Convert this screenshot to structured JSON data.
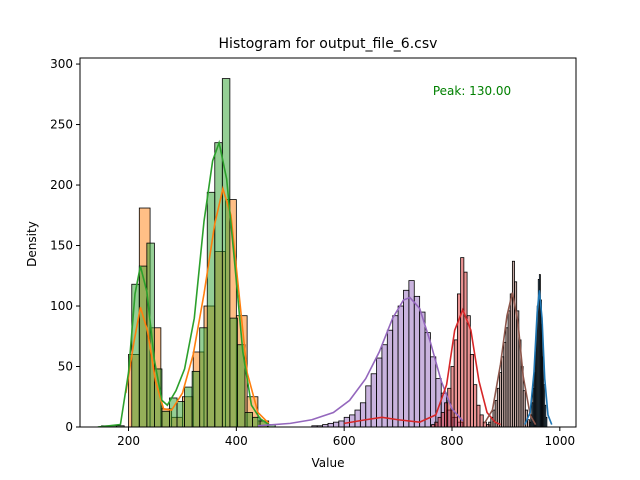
{
  "chart_data": {
    "type": "histogram",
    "title": "Histogram for output_file_6.csv",
    "xlabel": "Value",
    "ylabel": "Density",
    "xlim": [
      110,
      1030
    ],
    "ylim": [
      0,
      305
    ],
    "x_ticks": [
      200,
      400,
      600,
      800,
      1000
    ],
    "y_ticks": [
      0,
      50,
      100,
      150,
      200,
      250,
      300
    ],
    "grid": false,
    "annotation": {
      "text": "Peak: 130.00",
      "color": "#008000",
      "position": "top-right"
    },
    "series": [
      {
        "color": "#ff7f0e",
        "bin_width": 20,
        "bins": [
          {
            "x": 200,
            "count": 60
          },
          {
            "x": 220,
            "count": 181
          },
          {
            "x": 240,
            "count": 82
          },
          {
            "x": 260,
            "count": 15
          },
          {
            "x": 280,
            "count": 8
          },
          {
            "x": 300,
            "count": 25
          },
          {
            "x": 320,
            "count": 62
          },
          {
            "x": 340,
            "count": 100
          },
          {
            "x": 360,
            "count": 145
          },
          {
            "x": 380,
            "count": 188
          },
          {
            "x": 400,
            "count": 92
          },
          {
            "x": 420,
            "count": 25
          },
          {
            "x": 440,
            "count": 5
          }
        ],
        "kde": [
          [
            195,
            28
          ],
          [
            210,
            70
          ],
          [
            222,
            99
          ],
          [
            235,
            80
          ],
          [
            250,
            38
          ],
          [
            265,
            15
          ],
          [
            280,
            14
          ],
          [
            300,
            28
          ],
          [
            320,
            60
          ],
          [
            340,
            110
          ],
          [
            360,
            168
          ],
          [
            375,
            197
          ],
          [
            390,
            175
          ],
          [
            405,
            110
          ],
          [
            420,
            45
          ],
          [
            440,
            12
          ],
          [
            460,
            3
          ]
        ]
      },
      {
        "color": "#2ca02c",
        "bin_width": 14,
        "bins": [
          {
            "x": 150,
            "count": 1
          },
          {
            "x": 164,
            "count": 1
          },
          {
            "x": 178,
            "count": 1
          },
          {
            "x": 192,
            "count": 0
          },
          {
            "x": 206,
            "count": 118
          },
          {
            "x": 220,
            "count": 133
          },
          {
            "x": 234,
            "count": 152
          },
          {
            "x": 248,
            "count": 48
          },
          {
            "x": 262,
            "count": 13
          },
          {
            "x": 276,
            "count": 24
          },
          {
            "x": 290,
            "count": 21
          },
          {
            "x": 304,
            "count": 33
          },
          {
            "x": 318,
            "count": 46
          },
          {
            "x": 332,
            "count": 82
          },
          {
            "x": 346,
            "count": 194
          },
          {
            "x": 360,
            "count": 235
          },
          {
            "x": 374,
            "count": 288
          },
          {
            "x": 388,
            "count": 90
          },
          {
            "x": 402,
            "count": 68
          },
          {
            "x": 416,
            "count": 12
          },
          {
            "x": 430,
            "count": 8
          },
          {
            "x": 444,
            "count": 5
          },
          {
            "x": 458,
            "count": 2
          }
        ],
        "kde": [
          [
            143,
            0
          ],
          [
            185,
            2
          ],
          [
            200,
            45
          ],
          [
            212,
            110
          ],
          [
            222,
            133
          ],
          [
            234,
            112
          ],
          [
            248,
            55
          ],
          [
            262,
            22
          ],
          [
            272,
            18
          ],
          [
            288,
            30
          ],
          [
            304,
            48
          ],
          [
            322,
            90
          ],
          [
            340,
            170
          ],
          [
            356,
            220
          ],
          [
            368,
            235
          ],
          [
            382,
            205
          ],
          [
            396,
            140
          ],
          [
            412,
            62
          ],
          [
            428,
            18
          ],
          [
            444,
            7
          ],
          [
            460,
            2
          ]
        ]
      },
      {
        "color": "#9467bd",
        "bin_width": 10,
        "bins": [
          {
            "x": 540,
            "count": 1
          },
          {
            "x": 550,
            "count": 1
          },
          {
            "x": 560,
            "count": 2
          },
          {
            "x": 570,
            "count": 3
          },
          {
            "x": 580,
            "count": 4
          },
          {
            "x": 590,
            "count": 5
          },
          {
            "x": 600,
            "count": 8
          },
          {
            "x": 610,
            "count": 10
          },
          {
            "x": 620,
            "count": 14
          },
          {
            "x": 630,
            "count": 20
          },
          {
            "x": 640,
            "count": 34
          },
          {
            "x": 650,
            "count": 44
          },
          {
            "x": 660,
            "count": 57
          },
          {
            "x": 670,
            "count": 68
          },
          {
            "x": 680,
            "count": 80
          },
          {
            "x": 690,
            "count": 92
          },
          {
            "x": 700,
            "count": 100
          },
          {
            "x": 710,
            "count": 113
          },
          {
            "x": 720,
            "count": 121
          },
          {
            "x": 730,
            "count": 108
          },
          {
            "x": 740,
            "count": 95
          },
          {
            "x": 750,
            "count": 78
          },
          {
            "x": 760,
            "count": 58
          },
          {
            "x": 770,
            "count": 40
          },
          {
            "x": 780,
            "count": 28
          },
          {
            "x": 790,
            "count": 14
          },
          {
            "x": 800,
            "count": 8
          },
          {
            "x": 810,
            "count": 4
          }
        ],
        "kde": [
          [
            440,
            1
          ],
          [
            500,
            3
          ],
          [
            540,
            6
          ],
          [
            580,
            12
          ],
          [
            610,
            22
          ],
          [
            640,
            40
          ],
          [
            665,
            62
          ],
          [
            690,
            90
          ],
          [
            710,
            105
          ],
          [
            722,
            107
          ],
          [
            740,
            98
          ],
          [
            760,
            70
          ],
          [
            780,
            38
          ],
          [
            800,
            15
          ],
          [
            820,
            5
          ]
        ]
      },
      {
        "color": "#d62728",
        "bin_width": 6,
        "bins": [
          {
            "x": 762,
            "count": 2
          },
          {
            "x": 768,
            "count": 4
          },
          {
            "x": 774,
            "count": 8
          },
          {
            "x": 780,
            "count": 12
          },
          {
            "x": 786,
            "count": 20
          },
          {
            "x": 792,
            "count": 32
          },
          {
            "x": 798,
            "count": 50
          },
          {
            "x": 804,
            "count": 72
          },
          {
            "x": 810,
            "count": 110
          },
          {
            "x": 816,
            "count": 140
          },
          {
            "x": 822,
            "count": 128
          },
          {
            "x": 828,
            "count": 92
          },
          {
            "x": 834,
            "count": 60
          },
          {
            "x": 840,
            "count": 35
          },
          {
            "x": 846,
            "count": 18
          },
          {
            "x": 852,
            "count": 10
          },
          {
            "x": 858,
            "count": 4
          },
          {
            "x": 864,
            "count": 2
          }
        ],
        "kde": [
          [
            600,
            3
          ],
          [
            640,
            6
          ],
          [
            670,
            8
          ],
          [
            700,
            6
          ],
          [
            740,
            4
          ],
          [
            770,
            10
          ],
          [
            790,
            35
          ],
          [
            805,
            80
          ],
          [
            820,
            97
          ],
          [
            835,
            80
          ],
          [
            850,
            38
          ],
          [
            865,
            12
          ],
          [
            880,
            4
          ],
          [
            890,
            2
          ]
        ]
      },
      {
        "color": "#8c564b",
        "bin_width": 4,
        "bins": [
          {
            "x": 868,
            "count": 4
          },
          {
            "x": 872,
            "count": 8
          },
          {
            "x": 876,
            "count": 14
          },
          {
            "x": 880,
            "count": 22
          },
          {
            "x": 884,
            "count": 32
          },
          {
            "x": 888,
            "count": 45
          },
          {
            "x": 892,
            "count": 58
          },
          {
            "x": 896,
            "count": 70
          },
          {
            "x": 900,
            "count": 82
          },
          {
            "x": 904,
            "count": 96
          },
          {
            "x": 908,
            "count": 110
          },
          {
            "x": 912,
            "count": 137
          },
          {
            "x": 916,
            "count": 120
          },
          {
            "x": 920,
            "count": 96
          },
          {
            "x": 924,
            "count": 72
          },
          {
            "x": 928,
            "count": 50
          },
          {
            "x": 932,
            "count": 30
          },
          {
            "x": 936,
            "count": 14
          },
          {
            "x": 940,
            "count": 6
          }
        ],
        "kde": [
          [
            860,
            3
          ],
          [
            875,
            14
          ],
          [
            890,
            52
          ],
          [
            902,
            92
          ],
          [
            912,
            111
          ],
          [
            922,
            88
          ],
          [
            932,
            42
          ],
          [
            945,
            10
          ],
          [
            955,
            2
          ]
        ]
      },
      {
        "color": "#1f77b4",
        "bin_width": 2,
        "bins": [
          {
            "x": 944,
            "count": 4
          },
          {
            "x": 946,
            "count": 10
          },
          {
            "x": 948,
            "count": 20
          },
          {
            "x": 950,
            "count": 32
          },
          {
            "x": 952,
            "count": 45
          },
          {
            "x": 954,
            "count": 62
          },
          {
            "x": 956,
            "count": 80
          },
          {
            "x": 958,
            "count": 100
          },
          {
            "x": 960,
            "count": 122
          },
          {
            "x": 962,
            "count": 126
          },
          {
            "x": 964,
            "count": 105
          },
          {
            "x": 966,
            "count": 85
          },
          {
            "x": 968,
            "count": 58
          },
          {
            "x": 970,
            "count": 35
          },
          {
            "x": 972,
            "count": 18
          },
          {
            "x": 974,
            "count": 8
          }
        ],
        "kde": [
          [
            935,
            2
          ],
          [
            945,
            12
          ],
          [
            952,
            45
          ],
          [
            958,
            95
          ],
          [
            962,
            113
          ],
          [
            967,
            90
          ],
          [
            972,
            40
          ],
          [
            978,
            10
          ],
          [
            985,
            2
          ]
        ]
      }
    ]
  }
}
